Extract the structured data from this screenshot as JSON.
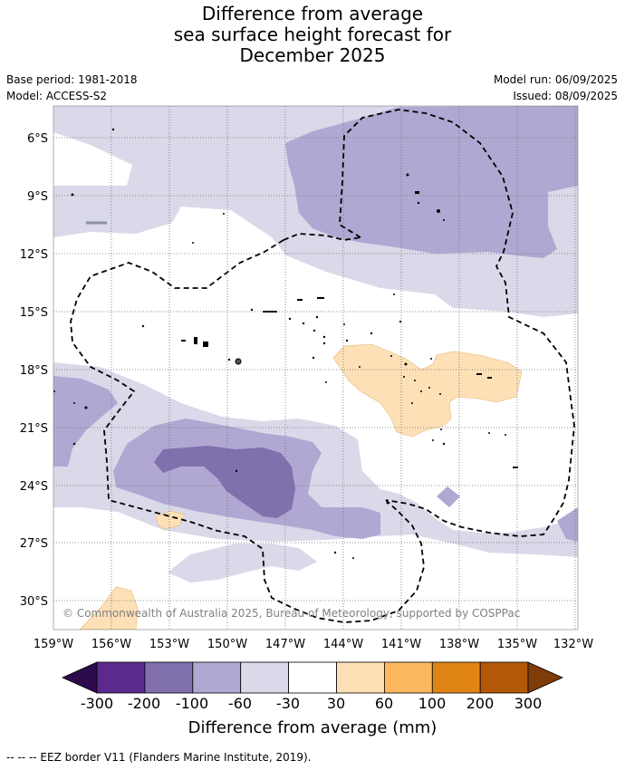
{
  "title": {
    "line1": "Difference from average",
    "line2": "sea surface height forecast for",
    "line3": "December 2025"
  },
  "meta": {
    "base_period": "Base period: 1981-2018",
    "model": "Model: ACCESS-S2",
    "model_run": "Model run: 06/09/2025",
    "issued": "Issued: 08/09/2025"
  },
  "map": {
    "lat_labels": [
      "6°S",
      "9°S",
      "12°S",
      "15°S",
      "18°S",
      "21°S",
      "24°S",
      "27°S",
      "30°S"
    ],
    "lon_labels": [
      "159°W",
      "156°W",
      "153°W",
      "150°W",
      "147°W",
      "144°W",
      "141°W",
      "138°W",
      "135°W",
      "132°W"
    ],
    "copyright": "© Commonwealth of Australia 2025, Bureau of Meteorology, supported by COSPPac"
  },
  "colorbar": {
    "tick_labels": [
      "-300",
      "-200",
      "-100",
      "-60",
      "-30",
      "30",
      "60",
      "100",
      "200",
      "300"
    ],
    "label": "Difference from average (mm)",
    "colors": {
      "below_min": "#2d0a4e",
      "bins": [
        "#5a2a8c",
        "#8070ae",
        "#b0a8d2",
        "#d9d9ea",
        "#ffffff",
        "#fde0b6",
        "#fbb85e",
        "#e08416",
        "#b35806"
      ],
      "above_max": "#7f3b08"
    }
  },
  "legend_footer": "-- -- -- EEZ border V11 (Flanders Marine Institute, 2019)."
}
